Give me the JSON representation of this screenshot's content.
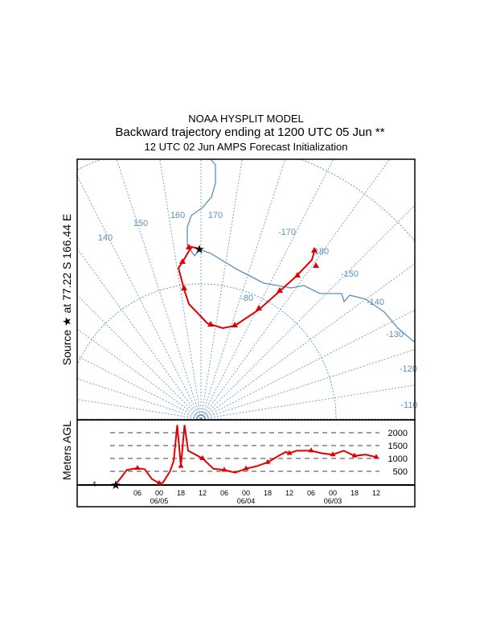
{
  "titles": {
    "line1": "NOAA HYSPLIT MODEL",
    "line2": "Backward trajectory ending at 1200 UTC 05 Jun **",
    "line3": "12 UTC 02 Jun    AMPS  Forecast Initialization"
  },
  "source_label": "Source ★ at  77.22 S  166.44 E",
  "colors": {
    "trajectory": "#e00000",
    "map": "#5b8fbf",
    "frame": "#000000"
  },
  "map": {
    "meridian_labels": [
      "140",
      "150",
      "160",
      "170",
      "-170",
      "180",
      "-150",
      "-140",
      "-130",
      "-120",
      "-110"
    ],
    "latitude_labels": [
      "-80"
    ]
  },
  "chart_data": {
    "type": "line",
    "title": "",
    "ylabel": "Meters AGL",
    "xlabel": "",
    "ylim": [
      0,
      2000
    ],
    "y_ticks": [
      "500",
      "1000",
      "1500",
      "2000"
    ],
    "left_tick": "4",
    "x_ticks": [
      "06",
      "00",
      "18",
      "12",
      "06",
      "00",
      "18",
      "12",
      "06",
      "00",
      "18",
      "12"
    ],
    "date_labels": [
      "06/05",
      "06/04",
      "06/03"
    ],
    "grid": "dashed horizontal",
    "series": [
      {
        "name": "trajectory height",
        "hours_back": [
          0,
          2,
          3,
          5,
          6,
          8,
          10,
          12,
          13,
          15,
          16,
          17,
          18,
          19,
          20,
          24,
          27,
          30,
          33,
          36,
          39,
          42,
          45,
          47,
          48,
          50,
          54,
          57,
          60,
          63,
          66,
          69,
          72
        ],
        "values": [
          0,
          350,
          550,
          600,
          620,
          580,
          200,
          40,
          50,
          500,
          900,
          2300,
          700,
          2300,
          1300,
          1000,
          600,
          550,
          450,
          600,
          700,
          850,
          1100,
          1250,
          1200,
          1300,
          1300,
          1200,
          1150,
          1300,
          1100,
          1150,
          1050
        ]
      }
    ]
  }
}
